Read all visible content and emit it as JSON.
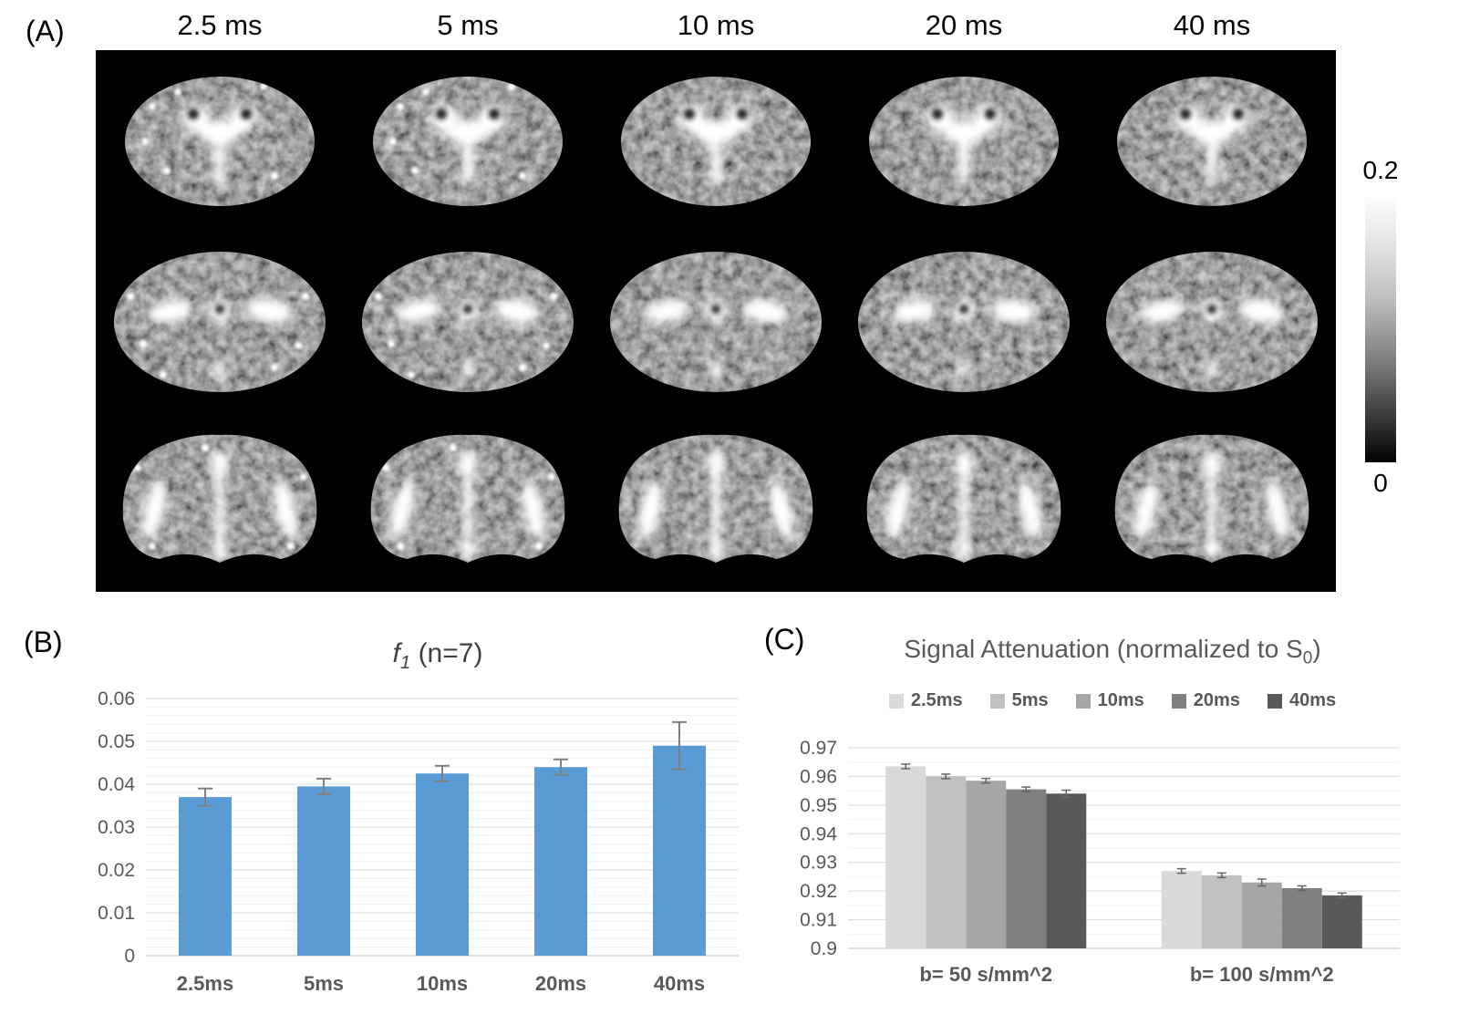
{
  "panel_a": {
    "label": "(A)",
    "column_headers": [
      "2.5 ms",
      "5 ms",
      "10 ms",
      "20 ms",
      "40 ms"
    ],
    "colorbar": {
      "max_label": "0.2",
      "min_label": "0"
    }
  },
  "panel_b": {
    "label": "(B)"
  },
  "panel_c": {
    "label": "(C)"
  },
  "chart_data": [
    {
      "type": "bar",
      "title": "f1 (n=7)",
      "title_parts": {
        "f": "f",
        "sub": "1",
        "rest": " (n=7)"
      },
      "categories": [
        "2.5ms",
        "5ms",
        "10ms",
        "20ms",
        "40ms"
      ],
      "values": [
        0.037,
        0.0395,
        0.0425,
        0.044,
        0.049
      ],
      "errors": [
        0.002,
        0.0018,
        0.0018,
        0.0018,
        0.0055
      ],
      "ylim": [
        0,
        0.06
      ],
      "yticks": [
        "0",
        "0.01",
        "0.02",
        "0.03",
        "0.04",
        "0.05",
        "0.06"
      ],
      "bar_color": "#5B9BD5",
      "error_color": "#7f7f7f",
      "grid": true,
      "legend": false
    },
    {
      "type": "bar",
      "title": "Signal Attenuation (normalized to S0)",
      "title_parts": {
        "main": "Signal Attenuation (normalized to S",
        "sub": "0",
        "end": ")"
      },
      "categories": [
        "b= 50 s/mm^2",
        "b= 100 s/mm^2"
      ],
      "series": [
        {
          "name": "2.5ms",
          "color": "#d9d9d9",
          "values": [
            0.9635,
            0.927
          ],
          "errors": [
            0.0008,
            0.0008
          ]
        },
        {
          "name": "5ms",
          "color": "#c0c0c0",
          "values": [
            0.96,
            0.9255
          ],
          "errors": [
            0.0008,
            0.0008
          ]
        },
        {
          "name": "10ms",
          "color": "#a6a6a6",
          "values": [
            0.9585,
            0.923
          ],
          "errors": [
            0.0008,
            0.0012
          ]
        },
        {
          "name": "20ms",
          "color": "#808080",
          "values": [
            0.9555,
            0.921
          ],
          "errors": [
            0.0008,
            0.0008
          ]
        },
        {
          "name": "40ms",
          "color": "#595959",
          "values": [
            0.954,
            0.9185
          ],
          "errors": [
            0.0012,
            0.0008
          ]
        }
      ],
      "ylim": [
        0.9,
        0.97
      ],
      "yticks": [
        "0.9",
        "0.91",
        "0.92",
        "0.93",
        "0.94",
        "0.95",
        "0.96",
        "0.97"
      ],
      "grid": true,
      "legend_position": "top"
    }
  ]
}
